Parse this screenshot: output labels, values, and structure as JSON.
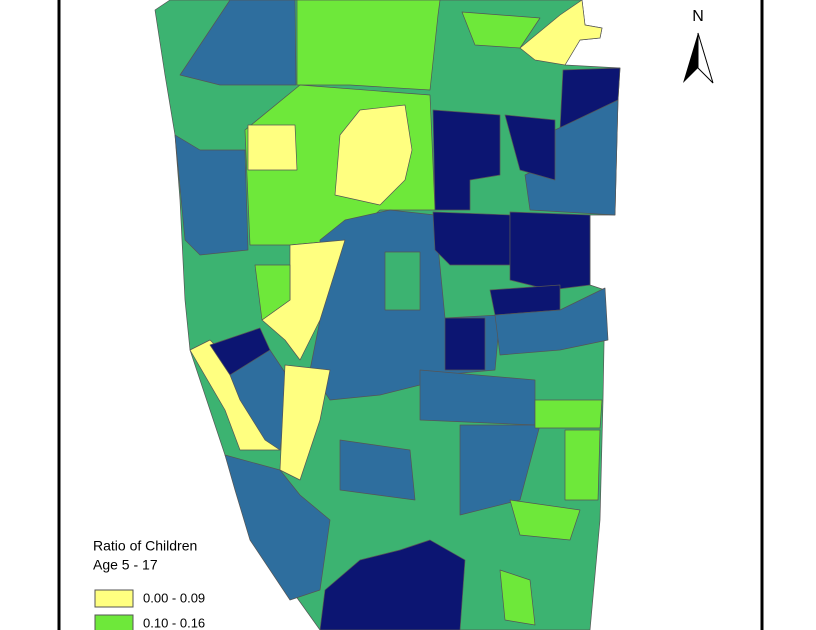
{
  "north_arrow": "N",
  "legend": {
    "title": [
      "Ratio of Children",
      "Age 5 - 17"
    ],
    "classes": [
      {
        "label": "0.00 - 0.09",
        "color": "#ffff80"
      },
      {
        "label": "0.10 - 0.16",
        "color": "#6ee83a"
      }
    ]
  }
}
